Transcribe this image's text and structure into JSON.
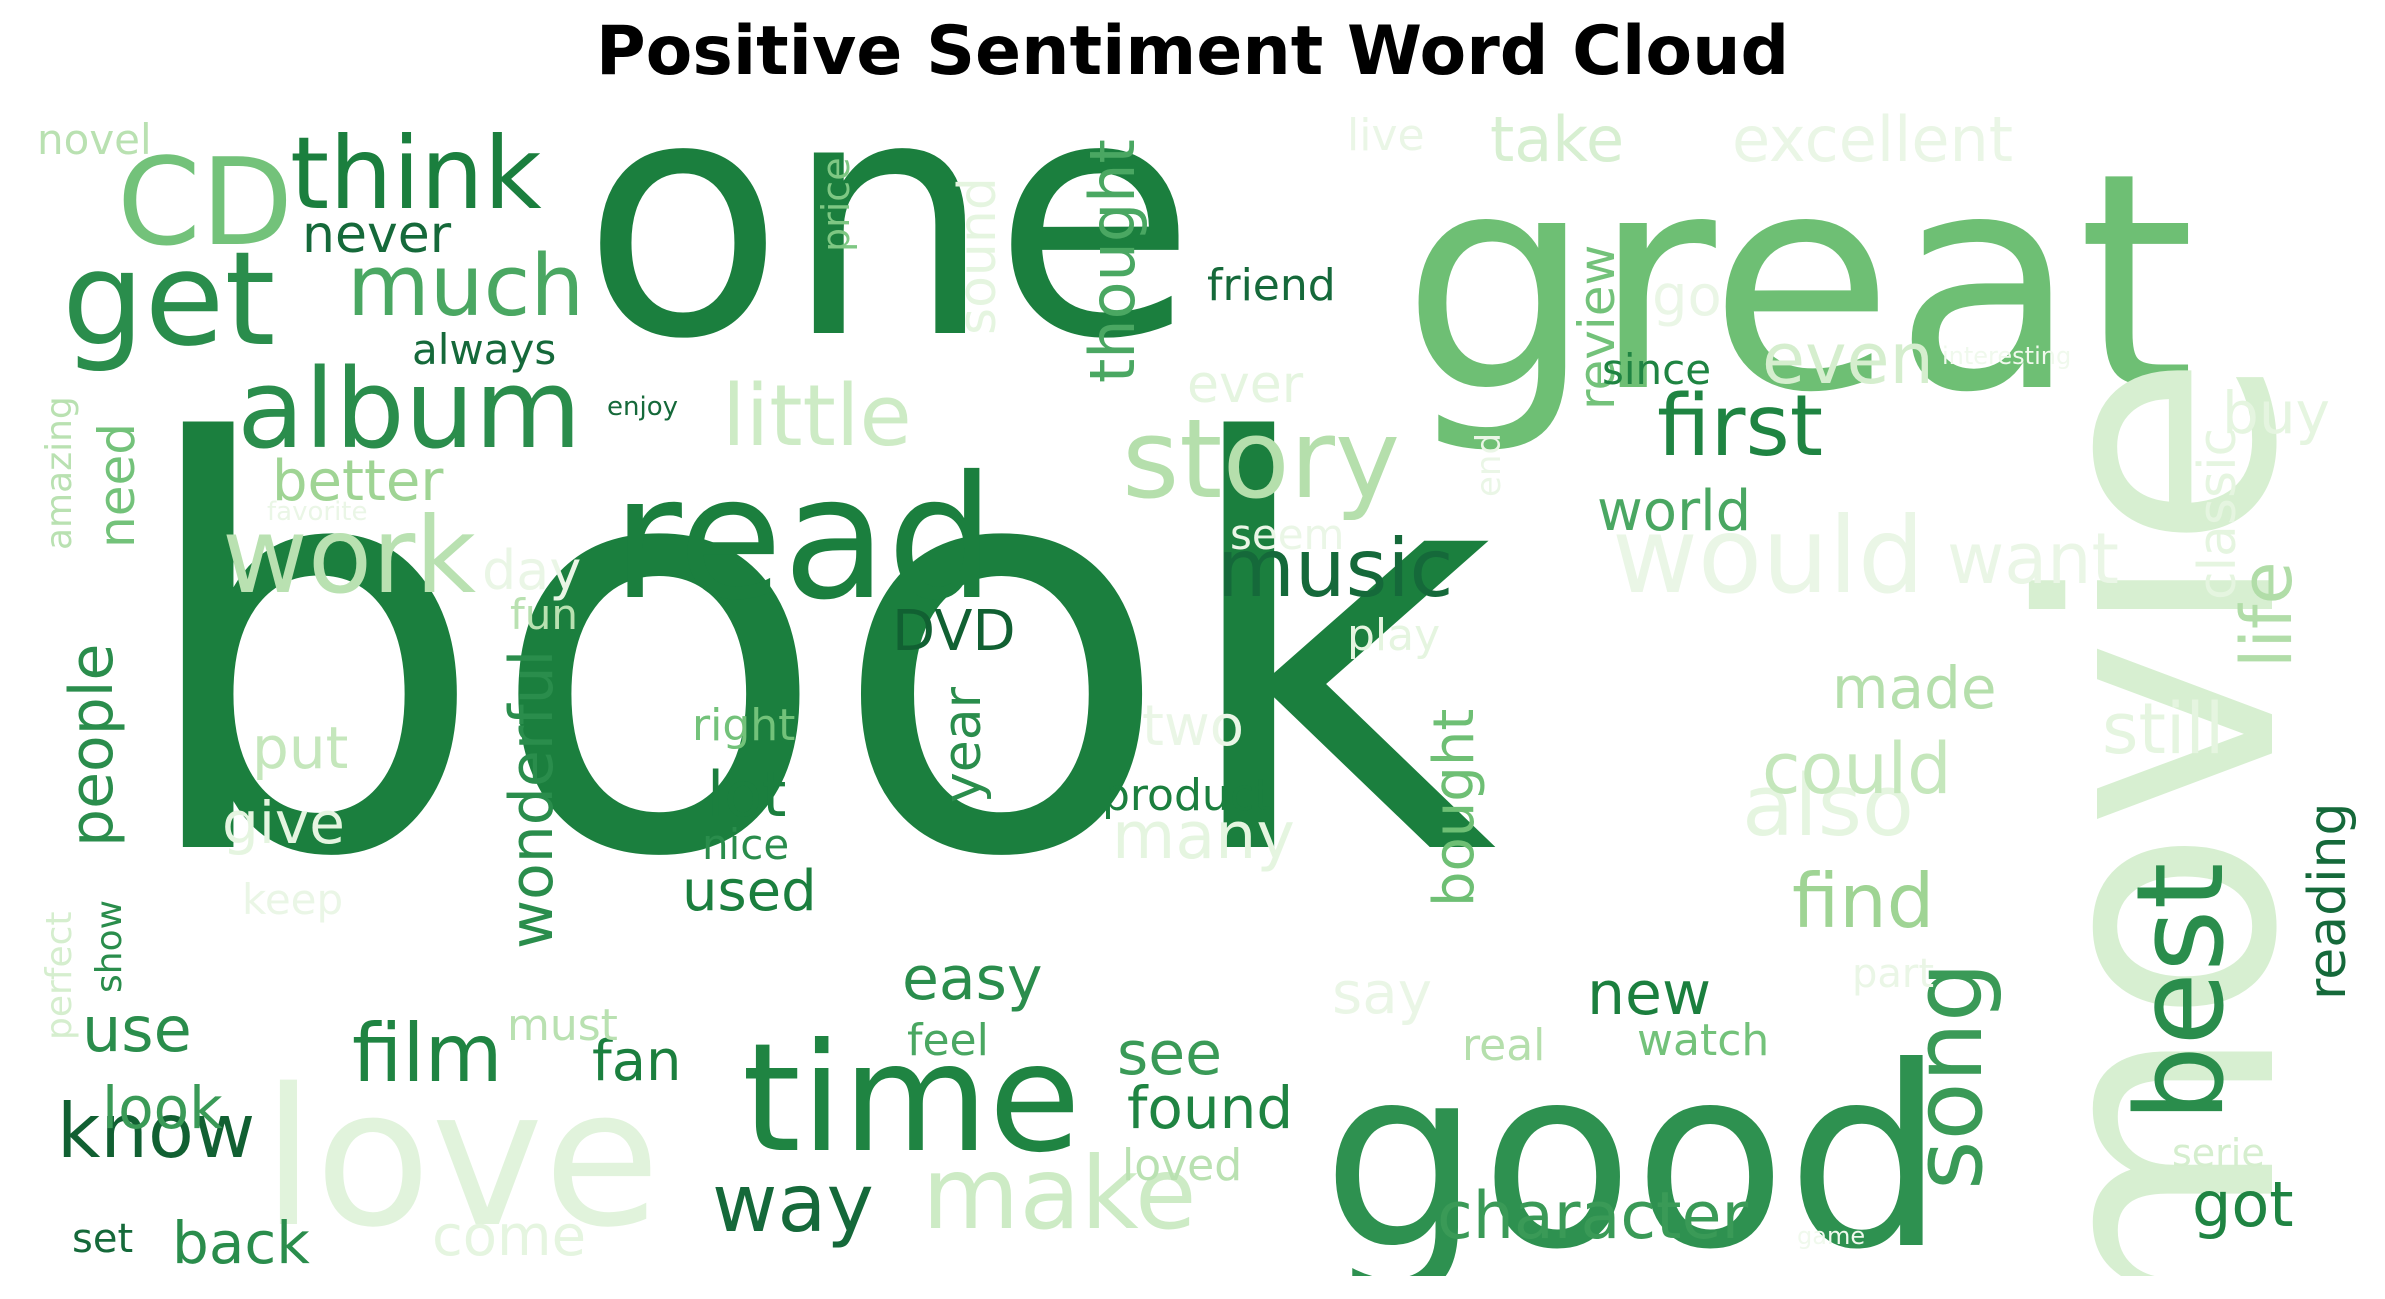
{
  "title": "Positive Sentiment Word Cloud",
  "words": [
    {
      "text": "book",
      "weight": 1.0,
      "color": "#1b7f3e",
      "orientation": "horizontal"
    },
    {
      "text": "one",
      "weight": 0.72,
      "color": "#1b7f3e",
      "orientation": "horizontal"
    },
    {
      "text": "great",
      "weight": 0.66,
      "color": "#6ebf74",
      "orientation": "horizontal"
    },
    {
      "text": "movie",
      "weight": 0.62,
      "color": "#d7efd1",
      "orientation": "vertical"
    },
    {
      "text": "good",
      "weight": 0.55,
      "color": "#2e9150",
      "orientation": "horizontal"
    },
    {
      "text": "love",
      "weight": 0.45,
      "color": "#e1f3dc",
      "orientation": "horizontal"
    },
    {
      "text": "time",
      "weight": 0.4,
      "color": "#1f8442",
      "orientation": "horizontal"
    },
    {
      "text": "read",
      "weight": 0.4,
      "color": "#1b7f3e",
      "orientation": "horizontal"
    },
    {
      "text": "get",
      "weight": 0.28,
      "color": "#2a8d4c",
      "orientation": "horizontal"
    },
    {
      "text": "CD",
      "weight": 0.25,
      "color": "#73c27a",
      "orientation": "horizontal"
    },
    {
      "text": "think",
      "weight": 0.22,
      "color": "#1b7f3e",
      "orientation": "horizontal"
    },
    {
      "text": "album",
      "weight": 0.22,
      "color": "#2a8d4c",
      "orientation": "horizontal"
    },
    {
      "text": "story",
      "weight": 0.22,
      "color": "#b5dfac",
      "orientation": "horizontal"
    },
    {
      "text": "work",
      "weight": 0.22,
      "color": "#b9e1b1",
      "orientation": "horizontal"
    },
    {
      "text": "would",
      "weight": 0.22,
      "color": "#eaf6e6",
      "orientation": "horizontal"
    },
    {
      "text": "make",
      "weight": 0.22,
      "color": "#cdebc5",
      "orientation": "horizontal"
    },
    {
      "text": "best",
      "weight": 0.24,
      "color": "#2a8d4c",
      "orientation": "vertical"
    },
    {
      "text": "song",
      "weight": 0.2,
      "color": "#3a9a57",
      "orientation": "vertical"
    },
    {
      "text": "much",
      "weight": 0.17,
      "color": "#4aa762",
      "orientation": "horizontal"
    },
    {
      "text": "first",
      "weight": 0.17,
      "color": "#1f8442",
      "orientation": "horizontal"
    },
    {
      "text": "little",
      "weight": 0.17,
      "color": "#cdebc5",
      "orientation": "horizontal"
    },
    {
      "text": "also",
      "weight": 0.17,
      "color": "#e5f5e0",
      "orientation": "horizontal"
    },
    {
      "text": "music",
      "weight": 0.15,
      "color": "#15693a",
      "orientation": "horizontal"
    },
    {
      "text": "film",
      "weight": 0.15,
      "color": "#1f8442",
      "orientation": "horizontal"
    },
    {
      "text": "way",
      "weight": 0.15,
      "color": "#15693a",
      "orientation": "horizontal"
    },
    {
      "text": "know",
      "weight": 0.15,
      "color": "#116032",
      "orientation": "horizontal"
    },
    {
      "text": "find",
      "weight": 0.14,
      "color": "#9fd494",
      "orientation": "horizontal"
    },
    {
      "text": "could",
      "weight": 0.14,
      "color": "#c5e7bc",
      "orientation": "horizontal"
    },
    {
      "text": "even",
      "weight": 0.14,
      "color": "#d5eece",
      "orientation": "horizontal"
    },
    {
      "text": "character",
      "weight": 0.13,
      "color": "#3a9a57",
      "orientation": "horizontal"
    },
    {
      "text": "want",
      "weight": 0.13,
      "color": "#eaf6e6",
      "orientation": "horizontal"
    },
    {
      "text": "still",
      "weight": 0.13,
      "color": "#e5f5e0",
      "orientation": "horizontal"
    },
    {
      "text": "many",
      "weight": 0.13,
      "color": "#e5f5e0",
      "orientation": "horizontal"
    },
    {
      "text": "take",
      "weight": 0.12,
      "color": "#d7efd1",
      "orientation": "horizontal"
    },
    {
      "text": "excellent",
      "weight": 0.12,
      "color": "#eaf6e6",
      "orientation": "horizontal"
    },
    {
      "text": "life",
      "weight": 0.13,
      "color": "#b1dda8",
      "orientation": "vertical"
    },
    {
      "text": "wonderful",
      "weight": 0.11,
      "color": "#2a8d4c",
      "orientation": "vertical"
    },
    {
      "text": "people",
      "weight": 0.11,
      "color": "#2a8d4c",
      "orientation": "vertical"
    },
    {
      "text": "reading",
      "weight": 0.11,
      "color": "#15693a",
      "orientation": "vertical"
    },
    {
      "text": "thought",
      "weight": 0.11,
      "color": "#4aa762",
      "orientation": "vertical"
    },
    {
      "text": "bought",
      "weight": 0.11,
      "color": "#6ebf74",
      "orientation": "vertical"
    },
    {
      "text": "classic",
      "weight": 0.1,
      "color": "#e5f5e0",
      "orientation": "vertical"
    },
    {
      "text": "sound",
      "weight": 0.1,
      "color": "#e5f5e0",
      "orientation": "vertical"
    },
    {
      "text": "year",
      "weight": 0.1,
      "color": "#2a8d4c",
      "orientation": "vertical"
    },
    {
      "text": "review",
      "weight": 0.09,
      "color": "#73c27a",
      "orientation": "vertical"
    },
    {
      "text": "need",
      "weight": 0.09,
      "color": "#73c27a",
      "orientation": "vertical"
    },
    {
      "text": "amazing",
      "weight": 0.07,
      "color": "#b9e1b1",
      "orientation": "vertical"
    },
    {
      "text": "perfect",
      "weight": 0.07,
      "color": "#d5eece",
      "orientation": "vertical"
    },
    {
      "text": "show",
      "weight": 0.07,
      "color": "#2a8d4c",
      "orientation": "vertical"
    },
    {
      "text": "price",
      "weight": 0.07,
      "color": "#7ec783",
      "orientation": "vertical"
    },
    {
      "text": "end",
      "weight": 0.06,
      "color": "#eaf6e6",
      "orientation": "vertical"
    },
    {
      "text": "got",
      "weight": 0.11,
      "color": "#1f8442",
      "orientation": "horizontal"
    },
    {
      "text": "new",
      "weight": 0.11,
      "color": "#1b7f3e",
      "orientation": "horizontal"
    },
    {
      "text": "see",
      "weight": 0.11,
      "color": "#3a9a57",
      "orientation": "horizontal"
    },
    {
      "text": "found",
      "weight": 0.11,
      "color": "#1f8442",
      "orientation": "horizontal"
    },
    {
      "text": "lot",
      "weight": 0.11,
      "color": "#1b7f3e",
      "orientation": "horizontal"
    },
    {
      "text": "DVD",
      "weight": 0.1,
      "color": "#116032",
      "orientation": "horizontal"
    },
    {
      "text": "easy",
      "weight": 0.1,
      "color": "#2a8d4c",
      "orientation": "horizontal"
    },
    {
      "text": "use",
      "weight": 0.1,
      "color": "#2a8d4c",
      "orientation": "horizontal"
    },
    {
      "text": "look",
      "weight": 0.1,
      "color": "#3a9a57",
      "orientation": "horizontal"
    },
    {
      "text": "back",
      "weight": 0.1,
      "color": "#2a8d4c",
      "orientation": "horizontal"
    },
    {
      "text": "made",
      "weight": 0.1,
      "color": "#b5dfac",
      "orientation": "horizontal"
    },
    {
      "text": "world",
      "weight": 0.1,
      "color": "#4aa762",
      "orientation": "horizontal"
    },
    {
      "text": "better",
      "weight": 0.1,
      "color": "#9fd494",
      "orientation": "horizontal"
    },
    {
      "text": "put",
      "weight": 0.1,
      "color": "#c5e7bc",
      "orientation": "horizontal"
    },
    {
      "text": "give",
      "weight": 0.1,
      "color": "#e5f5e0",
      "orientation": "horizontal"
    },
    {
      "text": "used",
      "weight": 0.1,
      "color": "#1b7f3e",
      "orientation": "horizontal"
    },
    {
      "text": "fan",
      "weight": 0.09,
      "color": "#1b7f3e",
      "orientation": "horizontal"
    },
    {
      "text": "never",
      "weight": 0.09,
      "color": "#15693a",
      "orientation": "horizontal"
    },
    {
      "text": "ever",
      "weight": 0.09,
      "color": "#e5f5e0",
      "orientation": "horizontal"
    },
    {
      "text": "buy",
      "weight": 0.09,
      "color": "#e5f5e0",
      "orientation": "horizontal"
    },
    {
      "text": "two",
      "weight": 0.09,
      "color": "#eaf6e6",
      "orientation": "horizontal"
    },
    {
      "text": "say",
      "weight": 0.09,
      "color": "#eaf6e6",
      "orientation": "horizontal"
    },
    {
      "text": "come",
      "weight": 0.09,
      "color": "#e5f5e0",
      "orientation": "horizontal"
    },
    {
      "text": "go",
      "weight": 0.09,
      "color": "#eaf6e6",
      "orientation": "horizontal"
    },
    {
      "text": "day",
      "weight": 0.08,
      "color": "#eaf6e6",
      "orientation": "horizontal"
    },
    {
      "text": "product",
      "weight": 0.07,
      "color": "#1b7f3e",
      "orientation": "horizontal"
    },
    {
      "text": "friend",
      "weight": 0.07,
      "color": "#15693a",
      "orientation": "horizontal"
    },
    {
      "text": "right",
      "weight": 0.07,
      "color": "#73c27a",
      "orientation": "horizontal"
    },
    {
      "text": "nice",
      "weight": 0.07,
      "color": "#2a8d4c",
      "orientation": "horizontal"
    },
    {
      "text": "always",
      "weight": 0.07,
      "color": "#15693a",
      "orientation": "horizontal"
    },
    {
      "text": "since",
      "weight": 0.07,
      "color": "#1f8442",
      "orientation": "horizontal"
    },
    {
      "text": "feel",
      "weight": 0.07,
      "color": "#4aa762",
      "orientation": "horizontal"
    },
    {
      "text": "watch",
      "weight": 0.07,
      "color": "#73c27a",
      "orientation": "horizontal"
    },
    {
      "text": "real",
      "weight": 0.07,
      "color": "#b5dfac",
      "orientation": "horizontal"
    },
    {
      "text": "must",
      "weight": 0.07,
      "color": "#b9e1b1",
      "orientation": "horizontal"
    },
    {
      "text": "loved",
      "weight": 0.07,
      "color": "#b9e1b1",
      "orientation": "horizontal"
    },
    {
      "text": "set",
      "weight": 0.07,
      "color": "#15693a",
      "orientation": "horizontal"
    },
    {
      "text": "serie",
      "weight": 0.07,
      "color": "#d5eece",
      "orientation": "horizontal"
    },
    {
      "text": "part",
      "weight": 0.07,
      "color": "#eaf6e6",
      "orientation": "horizontal"
    },
    {
      "text": "fun",
      "weight": 0.07,
      "color": "#b9e1b1",
      "orientation": "horizontal"
    },
    {
      "text": "play",
      "weight": 0.07,
      "color": "#e5f5e0",
      "orientation": "horizontal"
    },
    {
      "text": "seem",
      "weight": 0.07,
      "color": "#eaf6e6",
      "orientation": "horizontal"
    },
    {
      "text": "keep",
      "weight": 0.07,
      "color": "#eaf6e6",
      "orientation": "horizontal"
    },
    {
      "text": "live",
      "weight": 0.07,
      "color": "#eaf6e6",
      "orientation": "horizontal"
    },
    {
      "text": "novel",
      "weight": 0.07,
      "color": "#b9e1b1",
      "orientation": "horizontal"
    },
    {
      "text": "enjoy",
      "weight": 0.05,
      "color": "#15693a",
      "orientation": "horizontal"
    },
    {
      "text": "favorite",
      "weight": 0.05,
      "color": "#eaf6e6",
      "orientation": "horizontal"
    },
    {
      "text": "interesting",
      "weight": 0.05,
      "color": "#f0f9ed",
      "orientation": "horizontal"
    },
    {
      "text": "game",
      "weight": 0.04,
      "color": "#f0f9ed",
      "orientation": "horizontal"
    }
  ]
}
